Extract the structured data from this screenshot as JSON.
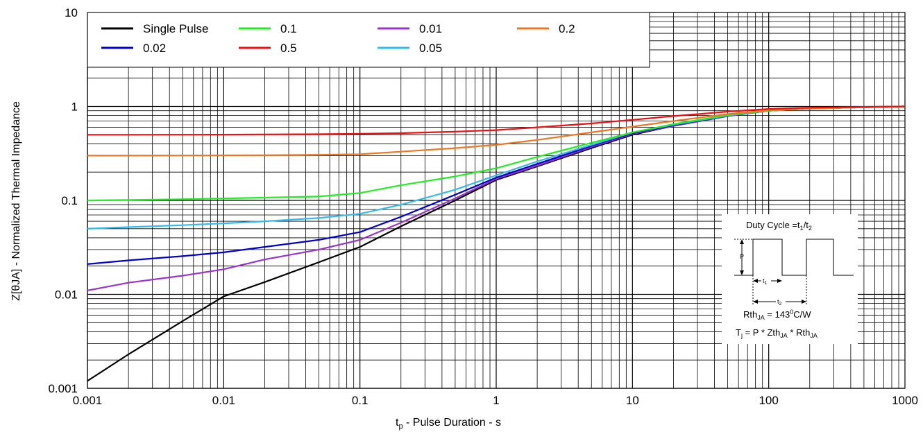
{
  "chart_data": {
    "type": "line",
    "x_scale": "log",
    "y_scale": "log",
    "xlim": [
      0.001,
      1000
    ],
    "ylim": [
      0.001,
      10
    ],
    "grid": true,
    "legend_position": "top-left",
    "xlabel_main": "t",
    "xlabel_sub": "p",
    "xlabel_rest": " - Pulse Duration - s",
    "ylabel": "Z[θJA] - Normalized Thermal Impedance",
    "x_ticks": [
      {
        "value": 0.001,
        "label": "0.001"
      },
      {
        "value": 0.01,
        "label": "0.01"
      },
      {
        "value": 0.1,
        "label": "0.1"
      },
      {
        "value": 1,
        "label": "1"
      },
      {
        "value": 10,
        "label": "10"
      },
      {
        "value": 100,
        "label": "100"
      },
      {
        "value": 1000,
        "label": "1000"
      }
    ],
    "y_ticks": [
      {
        "value": 0.001,
        "label": "0.001"
      },
      {
        "value": 0.01,
        "label": "0.01"
      },
      {
        "value": 0.1,
        "label": "0.1"
      },
      {
        "value": 1,
        "label": "1"
      },
      {
        "value": 10,
        "label": "10"
      }
    ],
    "series": [
      {
        "name": "Single Pulse",
        "color": "#000000",
        "points": [
          [
            0.001,
            0.0012
          ],
          [
            0.002,
            0.0023
          ],
          [
            0.005,
            0.0052
          ],
          [
            0.01,
            0.0095
          ],
          [
            0.02,
            0.0135
          ],
          [
            0.05,
            0.022
          ],
          [
            0.1,
            0.032
          ],
          [
            0.2,
            0.053
          ],
          [
            0.5,
            0.1
          ],
          [
            1,
            0.165
          ],
          [
            2,
            0.23
          ],
          [
            5,
            0.36
          ],
          [
            10,
            0.5
          ],
          [
            20,
            0.62
          ],
          [
            50,
            0.79
          ],
          [
            100,
            0.9
          ],
          [
            200,
            0.95
          ],
          [
            500,
            0.98
          ],
          [
            1000,
            1.0
          ]
        ]
      },
      {
        "name": "0.01",
        "color": "#9933cc",
        "points": [
          [
            0.001,
            0.011
          ],
          [
            0.002,
            0.0133
          ],
          [
            0.005,
            0.0158
          ],
          [
            0.01,
            0.0185
          ],
          [
            0.02,
            0.0235
          ],
          [
            0.05,
            0.03
          ],
          [
            0.1,
            0.038
          ],
          [
            0.2,
            0.058
          ],
          [
            0.5,
            0.105
          ],
          [
            1,
            0.17
          ],
          [
            2,
            0.235
          ],
          [
            5,
            0.37
          ],
          [
            10,
            0.51
          ],
          [
            20,
            0.62
          ],
          [
            50,
            0.79
          ],
          [
            100,
            0.9
          ],
          [
            200,
            0.95
          ],
          [
            500,
            0.98
          ],
          [
            1000,
            1.0
          ]
        ]
      },
      {
        "name": "0.02",
        "color": "#0000cc",
        "points": [
          [
            0.001,
            0.021
          ],
          [
            0.002,
            0.023
          ],
          [
            0.005,
            0.0255
          ],
          [
            0.01,
            0.028
          ],
          [
            0.02,
            0.032
          ],
          [
            0.05,
            0.038
          ],
          [
            0.1,
            0.046
          ],
          [
            0.2,
            0.067
          ],
          [
            0.5,
            0.115
          ],
          [
            1,
            0.175
          ],
          [
            2,
            0.245
          ],
          [
            5,
            0.38
          ],
          [
            10,
            0.52
          ],
          [
            20,
            0.63
          ],
          [
            50,
            0.8
          ],
          [
            100,
            0.9
          ],
          [
            200,
            0.95
          ],
          [
            500,
            0.98
          ],
          [
            1000,
            1.0
          ]
        ]
      },
      {
        "name": "0.05",
        "color": "#33bbee",
        "points": [
          [
            0.001,
            0.05
          ],
          [
            0.002,
            0.052
          ],
          [
            0.005,
            0.0545
          ],
          [
            0.01,
            0.057
          ],
          [
            0.02,
            0.06
          ],
          [
            0.05,
            0.065
          ],
          [
            0.1,
            0.072
          ],
          [
            0.2,
            0.09
          ],
          [
            0.5,
            0.13
          ],
          [
            1,
            0.185
          ],
          [
            2,
            0.26
          ],
          [
            5,
            0.39
          ],
          [
            10,
            0.53
          ],
          [
            20,
            0.64
          ],
          [
            50,
            0.8
          ],
          [
            100,
            0.9
          ],
          [
            200,
            0.95
          ],
          [
            500,
            0.98
          ],
          [
            1000,
            1.0
          ]
        ]
      },
      {
        "name": "0.1",
        "color": "#22ee22",
        "points": [
          [
            0.001,
            0.1
          ],
          [
            0.002,
            0.101
          ],
          [
            0.005,
            0.103
          ],
          [
            0.01,
            0.105
          ],
          [
            0.02,
            0.107
          ],
          [
            0.05,
            0.11
          ],
          [
            0.1,
            0.12
          ],
          [
            0.2,
            0.145
          ],
          [
            0.5,
            0.18
          ],
          [
            1,
            0.22
          ],
          [
            2,
            0.29
          ],
          [
            5,
            0.41
          ],
          [
            10,
            0.53
          ],
          [
            20,
            0.65
          ],
          [
            50,
            0.81
          ],
          [
            100,
            0.9
          ],
          [
            200,
            0.95
          ],
          [
            500,
            0.98
          ],
          [
            1000,
            1.0
          ]
        ]
      },
      {
        "name": "0.2",
        "color": "#ee7722",
        "points": [
          [
            0.001,
            0.3
          ],
          [
            0.002,
            0.3
          ],
          [
            0.005,
            0.301
          ],
          [
            0.01,
            0.302
          ],
          [
            0.02,
            0.303
          ],
          [
            0.05,
            0.306
          ],
          [
            0.1,
            0.31
          ],
          [
            0.2,
            0.33
          ],
          [
            0.5,
            0.36
          ],
          [
            1,
            0.39
          ],
          [
            2,
            0.44
          ],
          [
            5,
            0.53
          ],
          [
            10,
            0.61
          ],
          [
            20,
            0.7
          ],
          [
            50,
            0.83
          ],
          [
            100,
            0.91
          ],
          [
            200,
            0.95
          ],
          [
            500,
            0.98
          ],
          [
            1000,
            1.0
          ]
        ]
      },
      {
        "name": "0.5",
        "color": "#ee1111",
        "points": [
          [
            0.001,
            0.5
          ],
          [
            0.002,
            0.5
          ],
          [
            0.005,
            0.501
          ],
          [
            0.01,
            0.502
          ],
          [
            0.02,
            0.504
          ],
          [
            0.05,
            0.507
          ],
          [
            0.1,
            0.512
          ],
          [
            0.2,
            0.52
          ],
          [
            0.5,
            0.54
          ],
          [
            1,
            0.56
          ],
          [
            2,
            0.6
          ],
          [
            5,
            0.66
          ],
          [
            10,
            0.72
          ],
          [
            20,
            0.79
          ],
          [
            50,
            0.88
          ],
          [
            100,
            0.94
          ],
          [
            200,
            0.97
          ],
          [
            500,
            0.99
          ],
          [
            1000,
            1.0
          ]
        ]
      }
    ],
    "legend_order": [
      0,
      2,
      4,
      6,
      1,
      3,
      5
    ]
  },
  "inset": {
    "duty_cycle_label": "Duty Cycle =t",
    "duty_sub1": "1",
    "duty_slash": "/t",
    "duty_sub2": "2",
    "p_label": "P",
    "t1_label": "t",
    "t1_sub": "1",
    "t2_label": "t",
    "t2_sub": "2",
    "rth_label": "Rth",
    "rth_sub": "JA",
    "rth_value_pre": " = 143",
    "rth_sup": "0",
    "rth_unit": "C/W",
    "tj_label": "T",
    "tj_sub": "j",
    "tj_mid1": " = P * Zth",
    "tj_sub2": "JA",
    "tj_mid2": " * Rth",
    "tj_sub3": "JA"
  }
}
